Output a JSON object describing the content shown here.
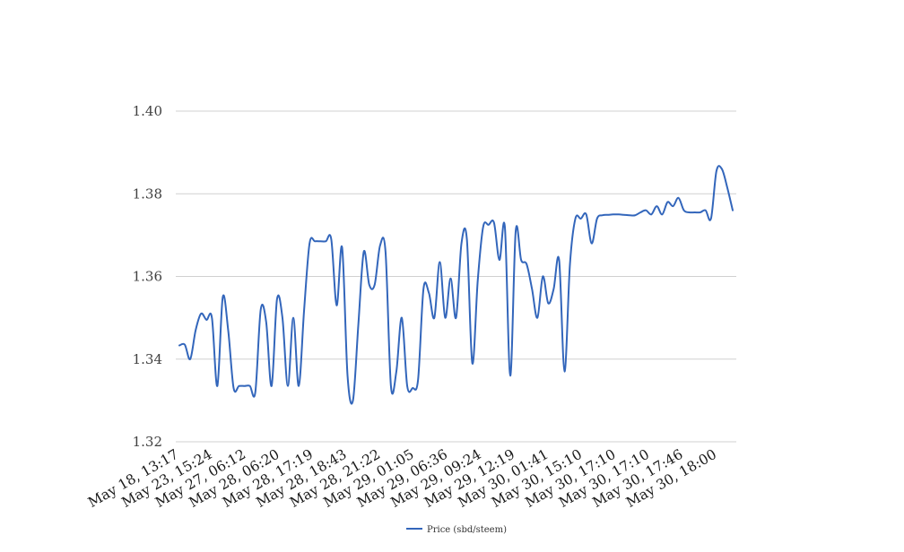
{
  "chart_data": {
    "type": "line",
    "title": "",
    "xlabel": "",
    "ylabel": "",
    "ylim": [
      1.32,
      1.4
    ],
    "yticks": [
      "1.40",
      "1.38",
      "1.36",
      "1.34",
      "1.32"
    ],
    "grid": true,
    "legend_position": "bottom",
    "x_tick_labels": [
      "May 18, 13:17",
      "May 23, 15:24",
      "May 27, 06:12",
      "May 28, 06:20",
      "May 28, 17:19",
      "May 28, 18:43",
      "May 28, 21:22",
      "May 29, 01:05",
      "May 29, 06:36",
      "May 29, 09:24",
      "May 29, 12:19",
      "May 30, 01:41",
      "May 30, 15:10",
      "May 30, 17:10",
      "May 30, 17:10",
      "May 30, 17:46",
      "May 30, 18:00"
    ],
    "series": [
      {
        "name": "Price (sbd/steem)",
        "color": "#3366bb",
        "values": [
          1.3433,
          1.3435,
          1.34,
          1.347,
          1.351,
          1.3495,
          1.35,
          1.3335,
          1.355,
          1.347,
          1.333,
          1.3335,
          1.3335,
          1.3335,
          1.332,
          1.352,
          1.349,
          1.3335,
          1.3545,
          1.35,
          1.3335,
          1.35,
          1.3335,
          1.352,
          1.368,
          1.3685,
          1.3685,
          1.3685,
          1.369,
          1.353,
          1.367,
          1.336,
          1.33,
          1.3485,
          1.366,
          1.358,
          1.358,
          1.3675,
          1.366,
          1.3335,
          1.337,
          1.35,
          1.3335,
          1.333,
          1.335,
          1.357,
          1.356,
          1.35,
          1.3635,
          1.35,
          1.3595,
          1.35,
          1.368,
          1.369,
          1.339,
          1.359,
          1.372,
          1.3725,
          1.373,
          1.364,
          1.372,
          1.336,
          1.371,
          1.364,
          1.363,
          1.357,
          1.35,
          1.36,
          1.3535,
          1.357,
          1.364,
          1.337,
          1.363,
          1.374,
          1.374,
          1.375,
          1.368,
          1.374,
          1.3748,
          1.3749,
          1.375,
          1.375,
          1.3749,
          1.3748,
          1.3748,
          1.3755,
          1.376,
          1.375,
          1.377,
          1.375,
          1.378,
          1.377,
          1.379,
          1.376,
          1.3755,
          1.3755,
          1.3755,
          1.376,
          1.374,
          1.3855,
          1.386,
          1.3815,
          1.376
        ]
      }
    ]
  }
}
